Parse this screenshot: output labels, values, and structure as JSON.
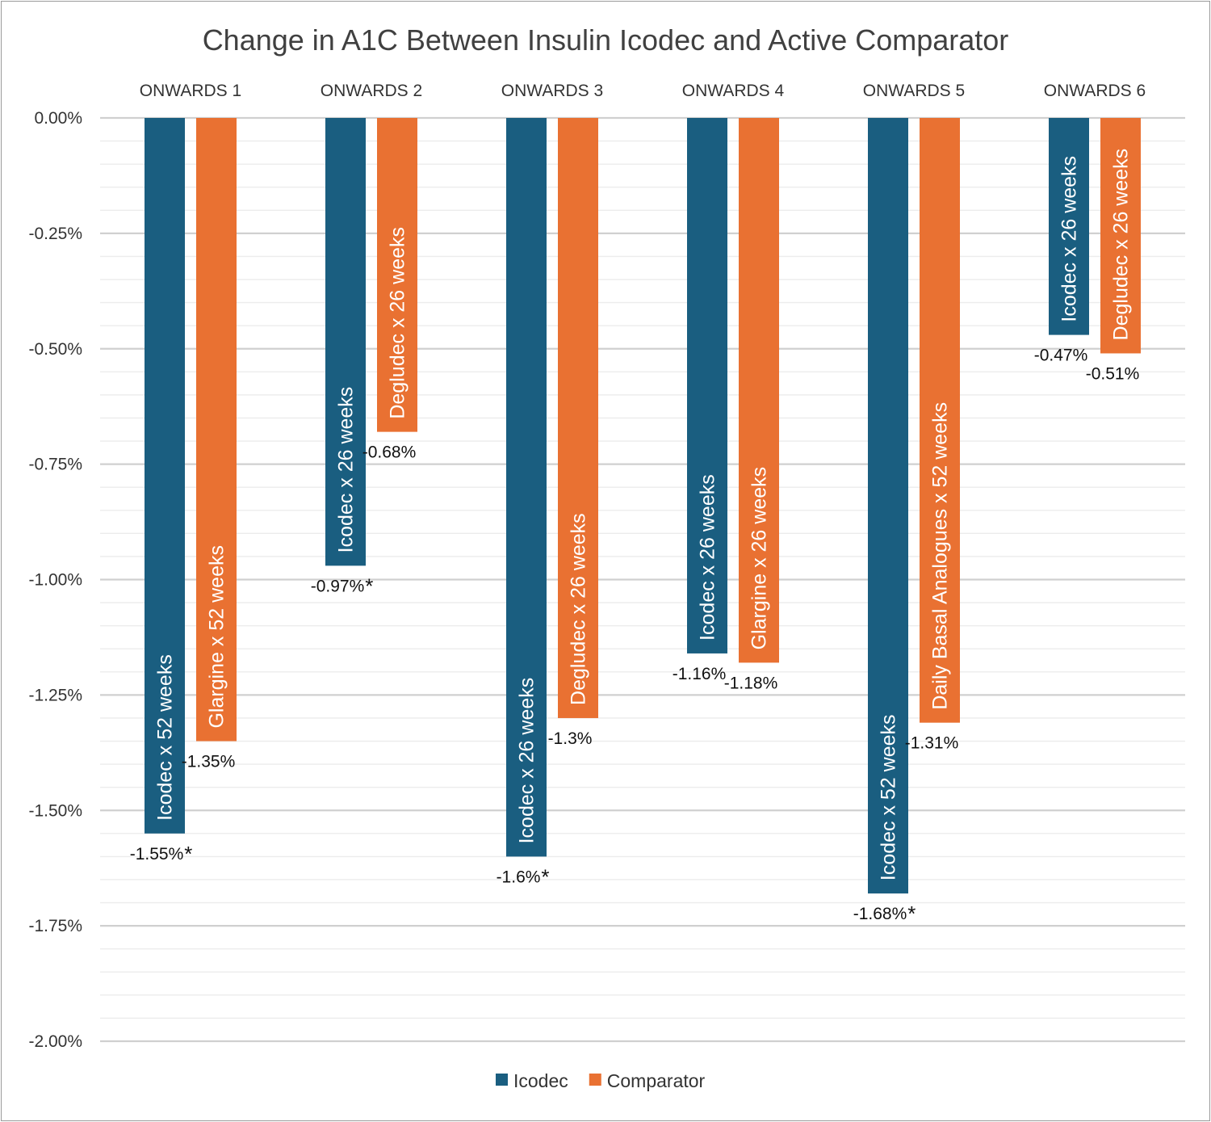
{
  "chart_data": {
    "type": "bar",
    "title": "Change in A1C Between Insulin Icodec and Active Comparator",
    "categories": [
      "ONWARDS 1",
      "ONWARDS 2",
      "ONWARDS 3",
      "ONWARDS 4",
      "ONWARDS 5",
      "ONWARDS 6"
    ],
    "ylim": [
      -2.0,
      0.0
    ],
    "yticks": [
      "0.00%",
      "-0.25%",
      "-0.50%",
      "-0.75%",
      "-1.00%",
      "-1.25%",
      "-1.50%",
      "-1.75%",
      "-2.00%"
    ],
    "yticks_values": [
      0,
      -0.25,
      -0.5,
      -0.75,
      -1.0,
      -1.25,
      -1.5,
      -1.75,
      -2.0
    ],
    "grid": true,
    "legend_position": "bottom",
    "series": [
      {
        "name": "Icodec",
        "color": "#1a5e80",
        "values": [
          -1.55,
          -0.97,
          -1.6,
          -1.16,
          -1.68,
          -0.47
        ],
        "data_labels": [
          "-1.55%",
          "-0.97%",
          "-1.6%",
          "-1.16%",
          "-1.68%",
          "-0.47%"
        ],
        "significant": [
          "*",
          "*",
          "*",
          "",
          "*",
          ""
        ],
        "bar_labels": [
          "Icodec x 52 weeks",
          "Icodec x 26 weeks",
          "Icodec x 26 weeks",
          "Icodec x 26 weeks",
          "Icodec x 52 weeks",
          "Icodec x 26 weeks"
        ]
      },
      {
        "name": "Comparator",
        "color": "#e97132",
        "values": [
          -1.35,
          -0.68,
          -1.3,
          -1.18,
          -1.31,
          -0.51
        ],
        "data_labels": [
          "-1.35%",
          "-0.68%",
          "-1.3%",
          "-1.18%",
          "-1.31%",
          "-0.51%"
        ],
        "significant": [
          "",
          "",
          "",
          "",
          "",
          ""
        ],
        "bar_labels": [
          "Glargine x 52 weeks",
          "Degludec  x 26 weeks",
          "Degludec  x 26 weeks",
          "Glargine  x 26 weeks",
          "Daily Basal Analogues  x 52 weeks",
          "Degludec  x 26 weeks"
        ]
      }
    ]
  }
}
